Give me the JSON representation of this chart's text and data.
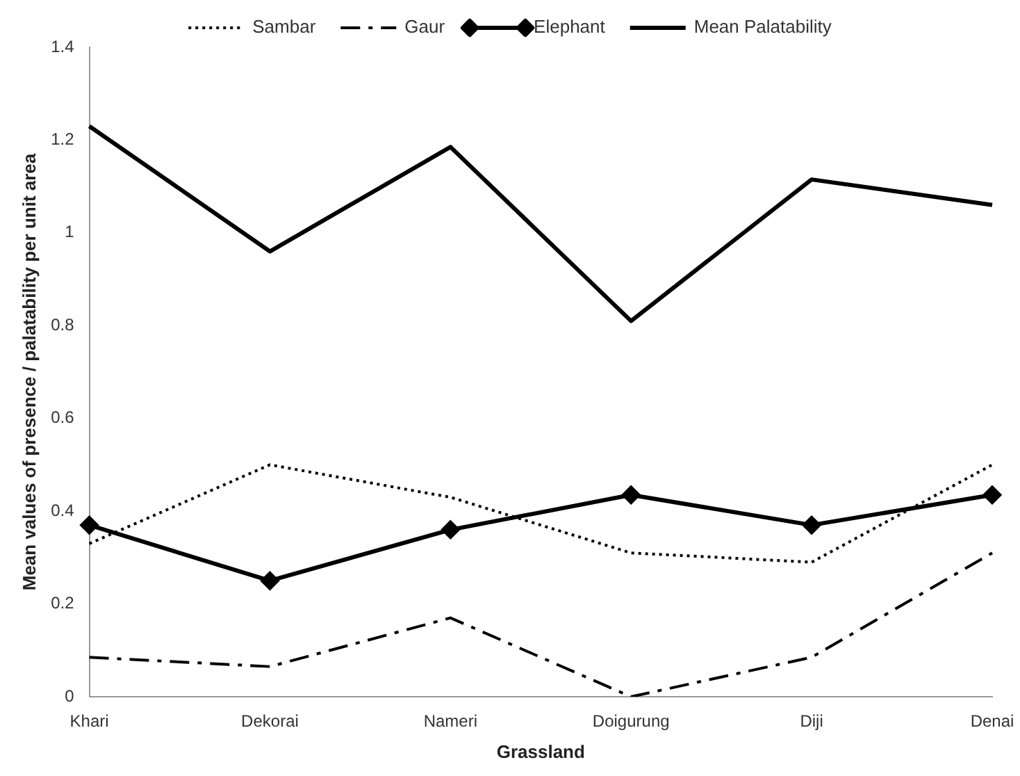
{
  "chart_data": {
    "type": "line",
    "xlabel": "Grassland",
    "ylabel": "Mean values of presence / palatability per unit area",
    "categories": [
      "Khari",
      "Dekorai",
      "Nameri",
      "Doigurung",
      "Diji",
      "Denai"
    ],
    "series": [
      {
        "name": "Sambar",
        "color": "#000000",
        "line_style": "dotted",
        "marker": "none",
        "values": [
          0.33,
          0.5,
          0.43,
          0.31,
          0.29,
          0.5
        ]
      },
      {
        "name": "Gaur",
        "color": "#000000",
        "line_style": "dashed",
        "marker": "none",
        "values": [
          0.085,
          0.065,
          0.17,
          0.0,
          0.085,
          0.31
        ]
      },
      {
        "name": "Elephant",
        "color": "#000000",
        "line_style": "solid",
        "marker": "diamond",
        "values": [
          0.37,
          0.25,
          0.36,
          0.435,
          0.37,
          0.435
        ]
      },
      {
        "name": "Mean Palatability",
        "color": "#000000",
        "line_style": "solid",
        "marker": "none",
        "values": [
          1.23,
          0.96,
          1.185,
          0.81,
          1.115,
          1.06
        ]
      }
    ],
    "ylim": [
      0,
      1.4
    ],
    "yticks": [
      0,
      0.2,
      0.4,
      0.6,
      0.8,
      1,
      1.2,
      1.4
    ],
    "grid": false,
    "legend": "top"
  }
}
